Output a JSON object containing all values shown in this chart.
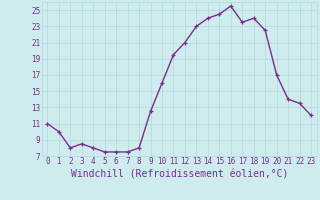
{
  "x": [
    0,
    1,
    2,
    3,
    4,
    5,
    6,
    7,
    8,
    9,
    10,
    11,
    12,
    13,
    14,
    15,
    16,
    17,
    18,
    19,
    20,
    21,
    22,
    23
  ],
  "y": [
    11,
    10,
    8,
    8.5,
    8,
    7.5,
    7.5,
    7.5,
    8,
    12.5,
    16,
    19.5,
    21,
    23,
    24,
    24.5,
    25.5,
    23.5,
    24,
    22.5,
    17,
    14,
    13.5,
    12
  ],
  "line_color": "#7b2d8b",
  "marker": "+",
  "bg_color": "#ceeced",
  "grid_color": "#b0d8da",
  "xlabel": "Windchill (Refroidissement éolien,°C)",
  "xlabel_fontsize": 7,
  "ylim": [
    7,
    26
  ],
  "xlim": [
    -0.5,
    23.5
  ],
  "yticks": [
    7,
    9,
    11,
    13,
    15,
    17,
    19,
    21,
    23,
    25
  ],
  "xticks": [
    0,
    1,
    2,
    3,
    4,
    5,
    6,
    7,
    8,
    9,
    10,
    11,
    12,
    13,
    14,
    15,
    16,
    17,
    18,
    19,
    20,
    21,
    22,
    23
  ],
  "tick_fontsize": 5.5,
  "tick_color": "#7b2d8b",
  "line_width": 1.0,
  "marker_size": 3.5
}
